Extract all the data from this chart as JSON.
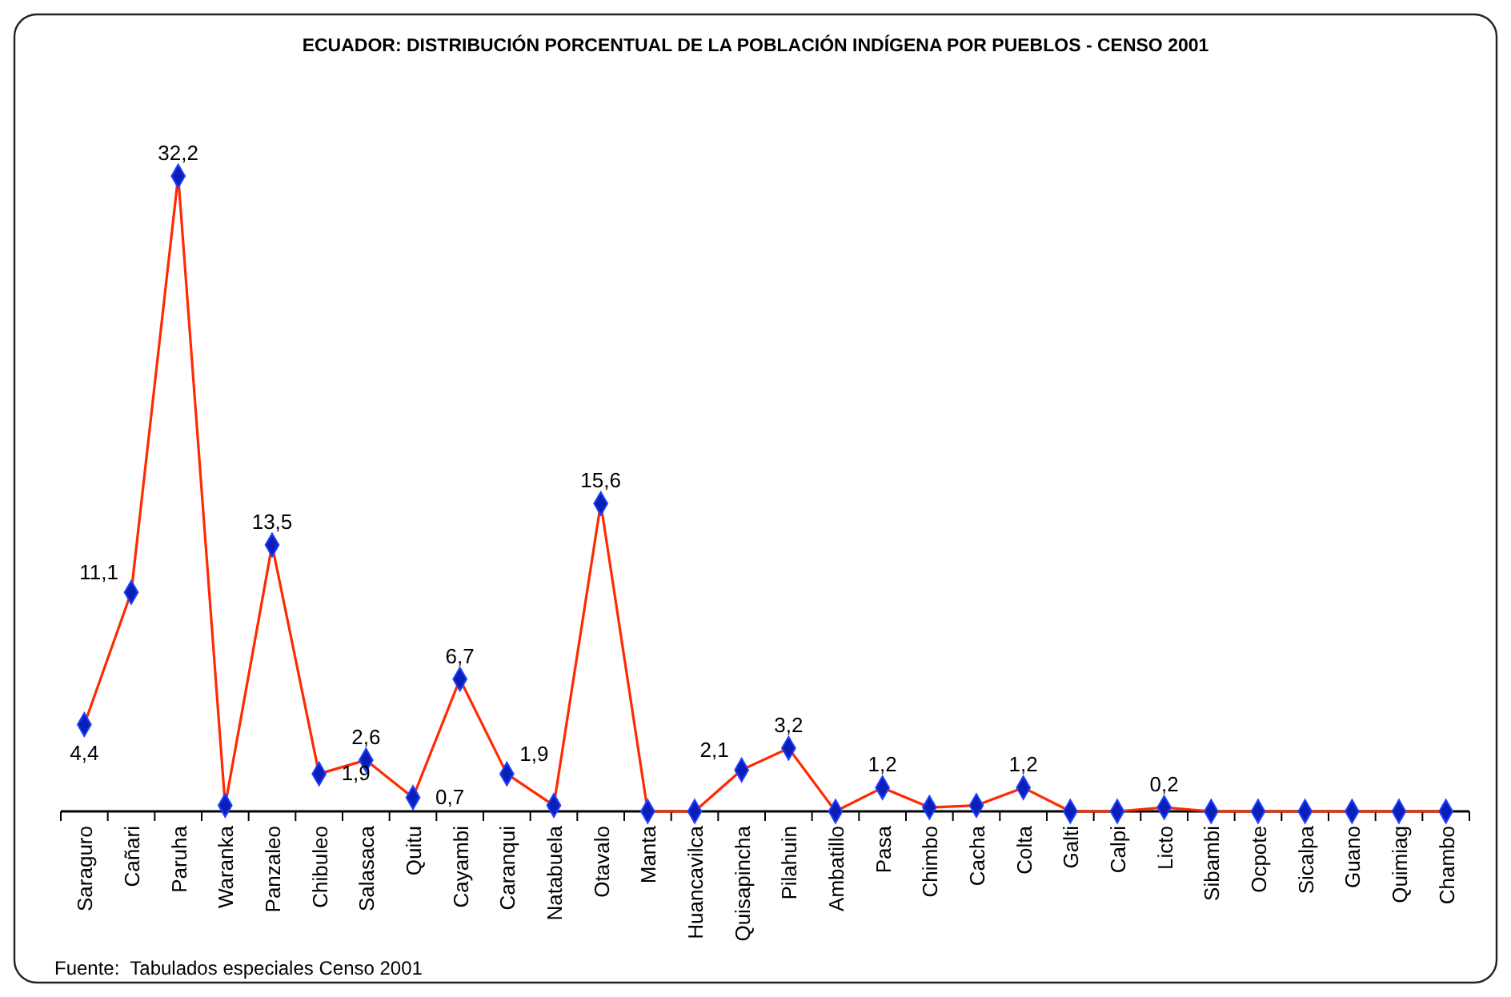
{
  "chart_data": {
    "type": "line",
    "title": "ECUADOR: DISTRIBUCIÓN PORCENTUAL DE LA POBLACIÓN INDÍGENA POR PUEBLOS - CENSO 2001",
    "categories": [
      "Saraguro",
      "Cañari",
      "Paruha",
      "Waranka",
      "Panzaleo",
      "Chibuleo",
      "Salasaca",
      "Quitu",
      "Cayambi",
      "Caranqui",
      "Natabuela",
      "Otavalo",
      "Manta",
      "Huancavilca",
      "Quisapincha",
      "Pilahuin",
      "Ambatillo",
      "Pasa",
      "Chimbo",
      "Cacha",
      "Colta",
      "Galti",
      "Calpi",
      "Licto",
      "Sibambi",
      "Ocpote",
      "Sicalpa",
      "Guano",
      "Quimiag",
      "Chambo"
    ],
    "series": [
      {
        "color": "#ff2a00",
        "values": [
          4.4,
          11.1,
          32.2,
          0.3,
          13.5,
          1.9,
          2.6,
          0.7,
          6.7,
          1.9,
          0.3,
          15.6,
          0,
          0,
          2.1,
          3.2,
          0,
          1.2,
          0.2,
          0.3,
          1.2,
          0,
          0,
          0.2,
          0,
          0,
          0,
          0,
          0,
          0
        ],
        "value_labels": [
          "4,4",
          "11,1",
          "32,2",
          null,
          "13,5",
          "1,9",
          "2,6",
          "0,7",
          "6,7",
          "1,9",
          null,
          "15,6",
          null,
          null,
          "2,1",
          "3,2",
          null,
          "1,2",
          null,
          null,
          "1,2",
          null,
          null,
          "0,2",
          null,
          null,
          null,
          null,
          null,
          null
        ]
      }
    ],
    "marker": "diamond",
    "annotations": [
      "Fuente:  Tabulados especiales Censo 2001"
    ]
  }
}
